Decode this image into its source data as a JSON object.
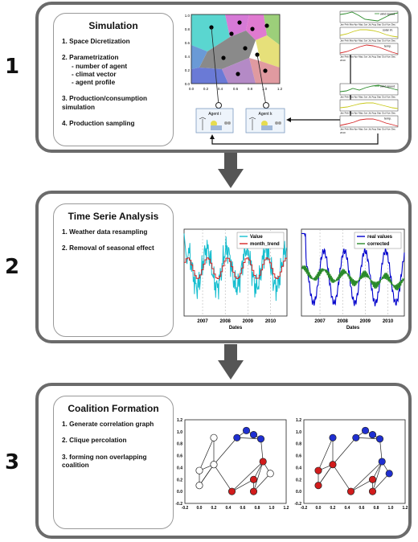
{
  "stages": [
    {
      "number": "1",
      "title": "Simulation",
      "steps": [
        {
          "label": "1. Space Dicretization"
        },
        {
          "label": "2. Parametrization",
          "sub": [
            "- number of agent",
            "- climat vector",
            "- agent profile"
          ]
        },
        {
          "label": "3. Production/consumption simulation"
        },
        {
          "label": "4. Production sampling"
        }
      ],
      "voronoi": {
        "ticks_x": [
          "0.0",
          "0.2",
          "0.4",
          "0.6",
          "0.8",
          "1.0",
          "1.2"
        ],
        "ticks_y": [
          "0.0",
          "0.2",
          "0.4",
          "0.6",
          "0.8",
          "1.0"
        ]
      },
      "agents": [
        "Agent i",
        "Agent k"
      ],
      "mini_charts": {
        "legends": [
          "wind speed",
          "solar irr.",
          "temp."
        ],
        "month_axis": "Jan Feb Mar Apr May Jun Jul Aug Sep Oct Nov Dec",
        "year": "2010"
      }
    },
    {
      "number": "2",
      "title": "Time Serie Analysis",
      "steps": [
        {
          "label": "1. Weather data resampling"
        },
        {
          "label": "2. Removal of seasonal effect"
        }
      ]
    },
    {
      "number": "3",
      "title": "Coalition Formation",
      "steps": [
        {
          "label": "1. Generate correlation graph"
        },
        {
          "label": "2. Clique percolation"
        },
        {
          "label": "3. forming non overlapping coalition"
        }
      ]
    }
  ],
  "chart_data": [
    {
      "type": "line",
      "xlabel": "Dates",
      "x_ticks": [
        "2007",
        "2008",
        "2009",
        "2010"
      ],
      "series": [
        {
          "name": "Value",
          "color": "#17becf"
        },
        {
          "name": "month_trend",
          "color": "#d62728"
        }
      ]
    },
    {
      "type": "line",
      "xlabel": "Dates",
      "x_ticks": [
        "2007",
        "2008",
        "2009",
        "2010"
      ],
      "series": [
        {
          "name": "real values",
          "color": "#0000cc"
        },
        {
          "name": "corrected",
          "color": "#2a8a2a"
        }
      ]
    },
    {
      "type": "scatter",
      "x_ticks": [
        "-0.2",
        "0.0",
        "0.2",
        "0.4",
        "0.6",
        "0.8",
        "1.0",
        "1.2"
      ],
      "y_ticks": [
        "-0.2",
        "0.0",
        "0.2",
        "0.4",
        "0.6",
        "0.8",
        "1.0",
        "1.2"
      ],
      "node_colors": [
        "white",
        "blue",
        "red"
      ]
    },
    {
      "type": "scatter",
      "x_ticks": [
        "-0.2",
        "0.0",
        "0.2",
        "0.4",
        "0.6",
        "0.8",
        "1.0",
        "1.2"
      ],
      "y_ticks": [
        "-0.2",
        "0.0",
        "0.2",
        "0.4",
        "0.6",
        "0.8",
        "1.0",
        "1.2"
      ],
      "node_colors": [
        "blue",
        "red"
      ]
    }
  ]
}
